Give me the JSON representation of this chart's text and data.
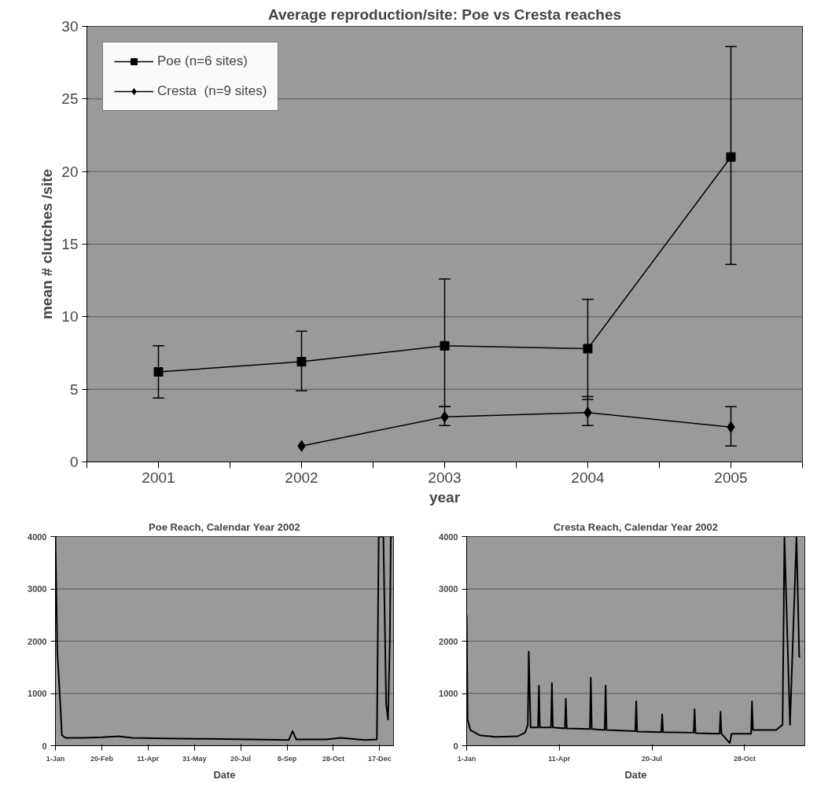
{
  "chart_data": [
    {
      "type": "line",
      "title": "Average reproduction/site: Poe vs Cresta reaches",
      "xlabel": "year",
      "ylabel": "mean # clutches /site",
      "categories": [
        "2001",
        "2002",
        "2003",
        "2004",
        "2005"
      ],
      "series": [
        {
          "name": "Poe (n=6 sites)",
          "color": "#000000",
          "marker": "square",
          "values": [
            6.2,
            6.9,
            8.0,
            7.8,
            21.0
          ],
          "errors": [
            [
              4.4,
              8.0
            ],
            [
              4.9,
              9.0
            ],
            [
              3.8,
              12.6
            ],
            [
              4.3,
              11.2
            ],
            [
              13.6,
              28.6
            ]
          ]
        },
        {
          "name": "Cresta  (n=9 sites)",
          "color": "#000000",
          "marker": "diamond",
          "values": [
            null,
            1.1,
            3.1,
            3.4,
            2.4
          ],
          "errors": [
            null,
            null,
            [
              2.5,
              3.8
            ],
            [
              2.5,
              4.5
            ],
            [
              1.1,
              3.8
            ]
          ]
        }
      ],
      "ylim": [
        0,
        30
      ],
      "yticks": [
        0,
        5,
        10,
        15,
        20,
        25,
        30
      ],
      "grid": "y",
      "legend": "top left"
    },
    {
      "type": "line",
      "title": "Poe Reach, Calendar Year 2002",
      "xlabel": "Date",
      "x": [
        "2002-01-01",
        "2002-01-03",
        "2002-01-05",
        "2002-01-08",
        "2002-01-12",
        "2002-02-01",
        "2002-02-20",
        "2002-03-10",
        "2002-03-25",
        "2002-05-01",
        "2002-06-15",
        "2002-08-01",
        "2002-09-10",
        "2002-09-14",
        "2002-09-18",
        "2002-10-20",
        "2002-11-05",
        "2002-12-01",
        "2002-12-14",
        "2002-12-16",
        "2002-12-21",
        "2002-12-24",
        "2002-12-26",
        "2002-12-28",
        "2002-12-29",
        "2002-12-31"
      ],
      "series": [
        {
          "color": "#000000",
          "values": [
            4000,
            1800,
            1200,
            200,
            150,
            150,
            160,
            180,
            150,
            140,
            130,
            120,
            110,
            280,
            120,
            120,
            150,
            110,
            120,
            4000,
            4000,
            800,
            500,
            2000,
            4000,
            4000
          ]
        }
      ],
      "xlim": [
        "2002-01-01",
        "2003-01-01"
      ],
      "xticks": [
        {
          "value": "2002-01-01",
          "label": "1-Jan"
        },
        {
          "value": "2002-02-20",
          "label": "20-Feb"
        },
        {
          "value": "2002-04-11",
          "label": "11-Apr"
        },
        {
          "value": "2002-05-31",
          "label": "31-May"
        },
        {
          "value": "2002-07-20",
          "label": "20-Jul"
        },
        {
          "value": "2002-09-08",
          "label": "8-Sep"
        },
        {
          "value": "2002-10-28",
          "label": "28-Oct"
        },
        {
          "value": "2002-12-17",
          "label": "17-Dec"
        }
      ],
      "ylim": [
        0,
        4000
      ],
      "yticks": [
        0,
        1000,
        2000,
        3000,
        4000
      ],
      "grid": "y",
      "marker": "none"
    },
    {
      "type": "line",
      "title": "Cresta Reach, Calendar Year 2002",
      "xlabel": "Date",
      "x": [
        "2002-01-01",
        "2002-01-02",
        "2002-01-05",
        "2002-01-15",
        "2002-02-01",
        "2002-02-25",
        "2002-03-05",
        "2002-03-08",
        "2002-03-09",
        "2002-03-11",
        "2002-03-19",
        "2002-03-20",
        "2002-03-21",
        "2002-04-02",
        "2002-04-03",
        "2002-04-04",
        "2002-04-17",
        "2002-04-18",
        "2002-04-19",
        "2002-05-14",
        "2002-05-15",
        "2002-05-16",
        "2002-05-30",
        "2002-05-31",
        "2002-06-01",
        "2002-07-02",
        "2002-07-03",
        "2002-07-04",
        "2002-07-30",
        "2002-07-31",
        "2002-08-01",
        "2002-09-03",
        "2002-09-04",
        "2002-09-05",
        "2002-10-01",
        "2002-10-02",
        "2002-10-03",
        "2002-10-12",
        "2002-10-14",
        "2002-11-04",
        "2002-11-05",
        "2002-11-06",
        "2002-12-01",
        "2002-12-08",
        "2002-12-10",
        "2002-12-16",
        "2002-12-23",
        "2002-12-26",
        "2002-12-27"
      ],
      "series": [
        {
          "color": "#000000",
          "values": [
            2500,
            500,
            300,
            200,
            170,
            180,
            250,
            400,
            1800,
            350,
            350,
            1150,
            350,
            350,
            1200,
            350,
            330,
            900,
            330,
            320,
            1300,
            320,
            300,
            1150,
            300,
            280,
            850,
            270,
            260,
            600,
            260,
            250,
            700,
            240,
            230,
            650,
            230,
            50,
            230,
            230,
            850,
            300,
            300,
            400,
            4000,
            400,
            4000,
            1700,
            1700
          ]
        }
      ],
      "xlim": [
        "2002-01-01",
        "2003-01-01"
      ],
      "xticks": [
        {
          "value": "2002-01-01",
          "label": "1-Jan"
        },
        {
          "value": "2002-04-11",
          "label": "11-Apr"
        },
        {
          "value": "2002-07-20",
          "label": "20-Jul"
        },
        {
          "value": "2002-10-28",
          "label": "28-Oct"
        }
      ],
      "ylim": [
        0,
        4000
      ],
      "yticks": [
        0,
        1000,
        2000,
        3000,
        4000
      ],
      "grid": "y",
      "marker": "none"
    }
  ]
}
